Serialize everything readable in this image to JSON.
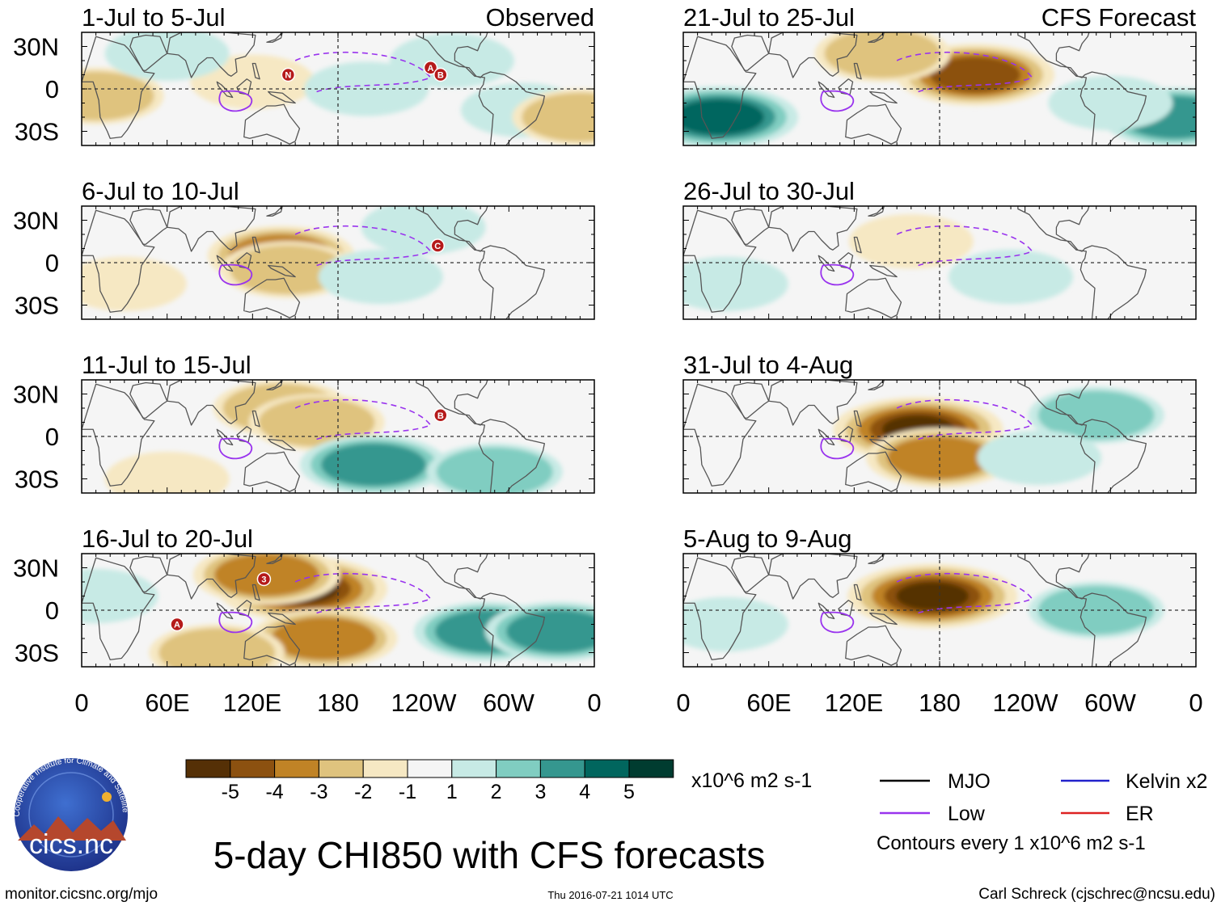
{
  "figure_title": "5-day CHI850 with CFS forecasts",
  "left_column_label": "Observed",
  "right_column_label": "CFS Forecast",
  "y_tick_labels": [
    "30N",
    "0",
    "30S"
  ],
  "x_tick_labels": [
    "0",
    "60E",
    "120E",
    "180",
    "120W",
    "60W",
    "0"
  ],
  "panels": [
    {
      "period": "1-Jul to 5-Jul",
      "kind": "observed",
      "blobs": [
        {
          "lon": 10,
          "lat": -5,
          "v": -2
        },
        {
          "lon": 120,
          "lat": 5,
          "v": -1
        },
        {
          "lon": 60,
          "lat": 25,
          "v": 1
        },
        {
          "lon": 200,
          "lat": 0,
          "v": 1
        },
        {
          "lon": 260,
          "lat": 20,
          "v": 1
        },
        {
          "lon": 310,
          "lat": -15,
          "v": 1
        },
        {
          "lon": 350,
          "lat": -20,
          "v": -2
        }
      ],
      "storms": [
        {
          "lon": 145,
          "lat": 10,
          "label": "N"
        },
        {
          "lon": 245,
          "lat": 15,
          "label": "A"
        },
        {
          "lon": 252,
          "lat": 10,
          "label": "B"
        }
      ]
    },
    {
      "period": "6-Jul to 10-Jul",
      "kind": "observed",
      "blobs": [
        {
          "lon": 140,
          "lat": 5,
          "v": -3
        },
        {
          "lon": 145,
          "lat": -5,
          "v": -2
        },
        {
          "lon": 30,
          "lat": -15,
          "v": -1
        },
        {
          "lon": 210,
          "lat": -10,
          "v": 1
        },
        {
          "lon": 240,
          "lat": 25,
          "v": 1
        }
      ],
      "storms": [
        {
          "lon": 250,
          "lat": 12,
          "label": "C"
        }
      ]
    },
    {
      "period": "11-Jul to 15-Jul",
      "kind": "observed",
      "blobs": [
        {
          "lon": 140,
          "lat": 20,
          "v": -2
        },
        {
          "lon": 165,
          "lat": 10,
          "v": -2
        },
        {
          "lon": 205,
          "lat": -20,
          "v": 3
        },
        {
          "lon": 290,
          "lat": -25,
          "v": 2
        },
        {
          "lon": 60,
          "lat": -30,
          "v": -1
        }
      ],
      "storms": [
        {
          "lon": 252,
          "lat": 15,
          "label": "B"
        }
      ]
    },
    {
      "period": "16-Jul to 20-Jul",
      "kind": "observed",
      "blobs": [
        {
          "lon": 155,
          "lat": 15,
          "v": -5
        },
        {
          "lon": 130,
          "lat": 25,
          "v": -3
        },
        {
          "lon": 170,
          "lat": -20,
          "v": -3
        },
        {
          "lon": 95,
          "lat": -30,
          "v": -2
        },
        {
          "lon": 285,
          "lat": -15,
          "v": 3
        },
        {
          "lon": 335,
          "lat": -15,
          "v": 3
        },
        {
          "lon": 10,
          "lat": 10,
          "v": 1
        }
      ],
      "storms": [
        {
          "lon": 128,
          "lat": 22,
          "label": "3"
        },
        {
          "lon": 67,
          "lat": -10,
          "label": "A"
        }
      ]
    },
    {
      "period": "21-Jul to 25-Jul",
      "kind": "forecast",
      "blobs": [
        {
          "lon": 205,
          "lat": 10,
          "v": -4
        },
        {
          "lon": 140,
          "lat": 25,
          "v": -2
        },
        {
          "lon": 25,
          "lat": -20,
          "v": 4
        },
        {
          "lon": 345,
          "lat": -20,
          "v": 3
        },
        {
          "lon": 300,
          "lat": -10,
          "v": 1
        }
      ],
      "storms": []
    },
    {
      "period": "26-Jul to 30-Jul",
      "kind": "forecast",
      "blobs": [
        {
          "lon": 160,
          "lat": 15,
          "v": -1
        },
        {
          "lon": 30,
          "lat": -15,
          "v": 1
        },
        {
          "lon": 230,
          "lat": -10,
          "v": 1
        }
      ],
      "storms": []
    },
    {
      "period": "31-Jul to 4-Aug",
      "kind": "forecast",
      "blobs": [
        {
          "lon": 165,
          "lat": 5,
          "v": -5
        },
        {
          "lon": 180,
          "lat": -15,
          "v": -3
        },
        {
          "lon": 290,
          "lat": 15,
          "v": 2
        },
        {
          "lon": 250,
          "lat": -15,
          "v": 1
        }
      ],
      "storms": []
    },
    {
      "period": "5-Aug to 9-Aug",
      "kind": "forecast",
      "blobs": [
        {
          "lon": 175,
          "lat": 10,
          "v": -5
        },
        {
          "lon": 290,
          "lat": 0,
          "v": 2
        },
        {
          "lon": 30,
          "lat": -10,
          "v": 1
        }
      ],
      "storms": []
    }
  ],
  "colorbar": {
    "ticks": [
      "-5",
      "-4",
      "-3",
      "-2",
      "-1",
      "1",
      "2",
      "3",
      "4",
      "5"
    ],
    "colors": [
      "#553006",
      "#8c5110",
      "#c08326",
      "#dfc37e",
      "#f6e8c3",
      "#f5f5f5",
      "#c7eae5",
      "#80cdc1",
      "#35978f",
      "#01665e",
      "#003c30"
    ],
    "units": "x10^6 m2 s-1"
  },
  "legend": {
    "items": [
      {
        "label": "MJO",
        "color": "#000000"
      },
      {
        "label": "Kelvin x2",
        "color": "#2222cc"
      },
      {
        "label": "Low",
        "color": "#9933ee"
      },
      {
        "label": "ER",
        "color": "#dd2222"
      }
    ],
    "note": "Contours every 1 x10^6 m2 s-1"
  },
  "logo": {
    "name": "cics.nc",
    "ring_text": "Cooperative Institute for Climate and Satellites"
  },
  "footer": {
    "url": "monitor.cicsnc.org/mjo",
    "timestamp": "Thu 2016-07-21 1014 UTC",
    "author": "Carl Schreck (cjschrec@ncsu.edu)"
  },
  "colors": {
    "mjo_low": "#9933ee",
    "storm": "#b51a1a",
    "land": "#555555",
    "background": "#f5f5f5"
  }
}
